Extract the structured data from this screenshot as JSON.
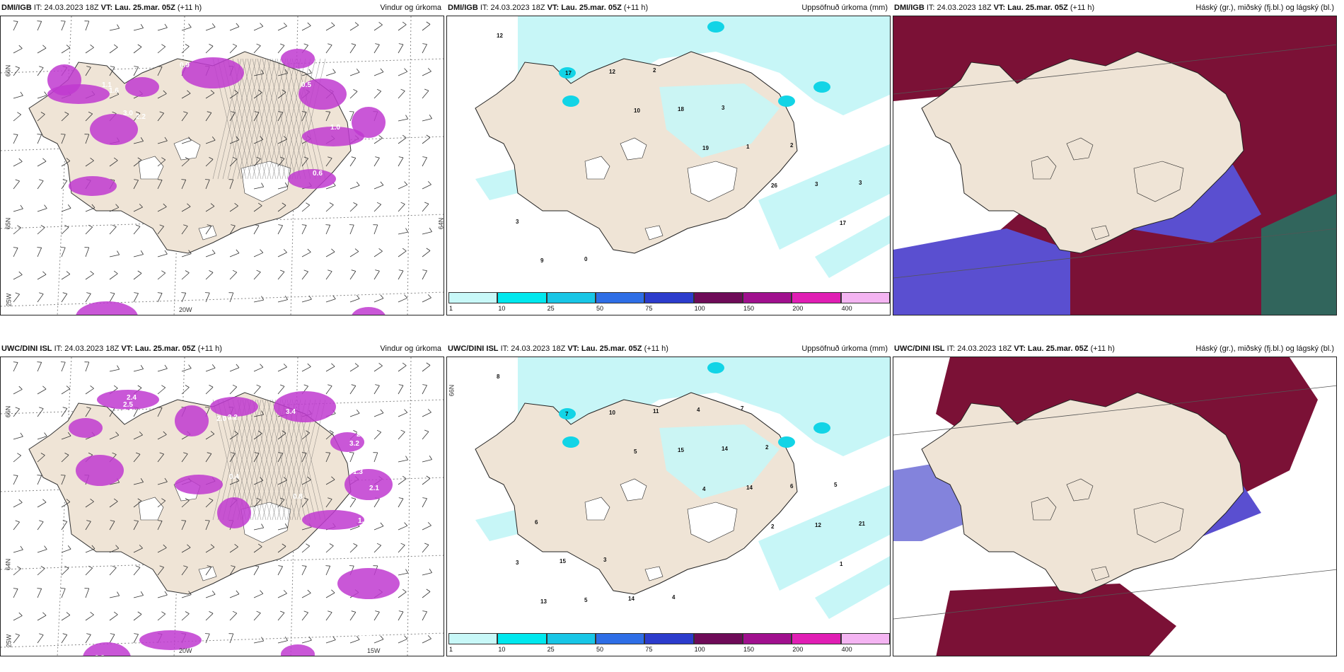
{
  "page": {
    "background": "#ffffff"
  },
  "colors": {
    "land": "#efe4d6",
    "rain": "#c7f6f7",
    "rainStrong": "#12d4e6",
    "snow": "#c03ad0",
    "highCloud": "#7b1136",
    "midCloud": "#5a4fd0",
    "lowCloud": "#6d6dd6",
    "sea": "#ffffff"
  },
  "panels": [
    {
      "model": "DMI/IGB",
      "it": "IT: 24.03.2023 18Z",
      "vt": "VT: Lau. 25.mar. 05Z",
      "lead": "(+11 h)",
      "title": "Vindur og úrkoma",
      "kind": "wind",
      "labels": [
        "3.6",
        "2.3",
        "0.5",
        "2.1",
        "3.9",
        "3.0",
        "1.3",
        "0.6",
        "1.0",
        "3.0",
        "2.2",
        "1.1",
        "1.6",
        "0.9"
      ],
      "axes": [
        "66N",
        "65N",
        "25W",
        "20W",
        "64N"
      ]
    },
    {
      "model": "DMI/IGB",
      "it": "IT: 24.03.2023 18Z",
      "vt": "VT: Lau. 25.mar. 05Z",
      "lead": "(+11 h)",
      "title": "Uppsöfnuð úrkoma (mm)",
      "kind": "precip",
      "labels": [
        "12",
        "17",
        "10",
        "19",
        "26",
        "17",
        "9",
        "12",
        "18",
        "1",
        "3",
        "3",
        "0",
        "2",
        "3",
        "2",
        "3"
      ],
      "axes": []
    },
    {
      "model": "DMI/IGB",
      "it": "IT: 24.03.2023 18Z",
      "vt": "VT: Lau. 25.mar. 05Z",
      "lead": "(+11 h)",
      "title": "Háský (gr.), miðský (fj.bl.) og lágský (bl.)",
      "kind": "cloud",
      "labels": [],
      "axes": []
    },
    {
      "model": "UWC/DINI ISL",
      "it": "IT: 24.03.2023 18Z",
      "vt": "VT: Lau. 25.mar. 05Z",
      "lead": "(+11 h)",
      "title": "Vindur og úrkoma",
      "kind": "wind",
      "labels": [
        "2.4",
        "2.5",
        "1.8",
        "2.0",
        "3.2",
        "3.4",
        "4.2",
        "2.7",
        "3.2",
        "1.3",
        "0.4",
        "2.1",
        "0.8",
        "1.2",
        "0.3",
        "0.9"
      ],
      "axes": [
        "66N",
        "64N",
        "25W",
        "20W",
        "15W"
      ]
    },
    {
      "model": "UWC/DINI ISL",
      "it": "IT: 24.03.2023 18Z",
      "vt": "VT: Lau. 25.mar. 05Z",
      "lead": "(+11 h)",
      "title": "Uppsöfnuð úrkoma (mm)",
      "kind": "precip",
      "labels": [
        "8",
        "7",
        "5",
        "4",
        "2",
        "1",
        "13",
        "10",
        "15",
        "14",
        "12",
        "3",
        "5",
        "11",
        "14",
        "6",
        "21",
        "15",
        "14",
        "4",
        "2",
        "5",
        "6",
        "3",
        "4",
        "7"
      ],
      "axes": [
        "66N"
      ]
    },
    {
      "model": "UWC/DINI ISL",
      "it": "IT: 24.03.2023 18Z",
      "vt": "VT: Lau. 25.mar. 05Z",
      "lead": "(+11 h)",
      "title": "Háský (gr.), miðský (fj.bl.) og lágský (bl.)",
      "kind": "cloud",
      "labels": [],
      "axes": []
    }
  ],
  "colorbar": {
    "ticks": [
      "1",
      "10",
      "25",
      "50",
      "75",
      "100",
      "150",
      "200",
      "400"
    ],
    "colors": [
      "#c8f8f8",
      "#00e8ee",
      "#18c6e6",
      "#2e6ee6",
      "#2c3ccc",
      "#6e0b58",
      "#a0108e",
      "#e01eb4",
      "#f4b4f2"
    ]
  }
}
